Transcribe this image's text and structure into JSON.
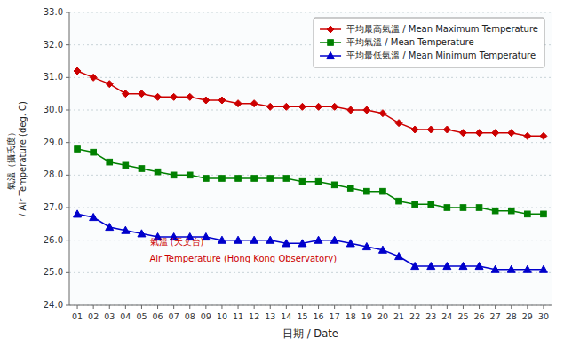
{
  "chart_data": {
    "type": "line",
    "xlabel": "日期 / Date",
    "ylabel": "氣溫（攝氏度）\n/ Air Temperature (deg. C)",
    "x": [
      1,
      2,
      3,
      4,
      5,
      6,
      7,
      8,
      9,
      10,
      11,
      12,
      13,
      14,
      15,
      16,
      17,
      18,
      19,
      20,
      21,
      22,
      23,
      24,
      25,
      26,
      27,
      28,
      29,
      30
    ],
    "xlim": [
      0.5,
      30.5
    ],
    "xticks": [
      {
        "value": 1,
        "label": "01"
      },
      {
        "value": 2,
        "label": "02"
      },
      {
        "value": 3,
        "label": "03"
      },
      {
        "value": 4,
        "label": "04"
      },
      {
        "value": 5,
        "label": "05"
      },
      {
        "value": 6,
        "label": "06"
      },
      {
        "value": 7,
        "label": "07"
      },
      {
        "value": 8,
        "label": "08"
      },
      {
        "value": 9,
        "label": "09"
      },
      10,
      11,
      12,
      13,
      14,
      15,
      16,
      17,
      18,
      19,
      20,
      21,
      22,
      23,
      24,
      25,
      26,
      27,
      28,
      29,
      30
    ],
    "ylim": [
      24.0,
      33.0
    ],
    "yticks": [
      {
        "value": 24.0,
        "label": "24.0"
      },
      {
        "value": 25.0,
        "label": "25.0"
      },
      {
        "value": 26.0,
        "label": "26.0"
      },
      {
        "value": 27.0,
        "label": "27.0"
      },
      {
        "value": 28.0,
        "label": "28.0"
      },
      {
        "value": 29.0,
        "label": "29.0"
      },
      {
        "value": 30.0,
        "label": "30.0"
      },
      {
        "value": 31.0,
        "label": "31.0"
      },
      {
        "value": 32.0,
        "label": "32.0"
      },
      {
        "value": 33.0,
        "label": "33.0"
      }
    ],
    "grid": true,
    "legend": "upper right",
    "series": [
      {
        "name": "平均最高氣溫 / Mean Maximum Temperature",
        "color": "#cc0000",
        "marker": "diamond",
        "values": [
          31.2,
          31.0,
          30.8,
          30.5,
          30.5,
          30.4,
          30.4,
          30.4,
          30.3,
          30.3,
          30.2,
          30.2,
          30.1,
          30.1,
          30.1,
          30.1,
          30.1,
          30.0,
          30.0,
          29.9,
          29.6,
          29.4,
          29.4,
          29.4,
          29.3,
          29.3,
          29.3,
          29.3,
          29.2,
          29.2
        ]
      },
      {
        "name": "平均氣溫 / Mean Temperature",
        "color": "#008000",
        "marker": "square",
        "values": [
          28.8,
          28.7,
          28.4,
          28.3,
          28.2,
          28.1,
          28.0,
          28.0,
          27.9,
          27.9,
          27.9,
          27.9,
          27.9,
          27.9,
          27.8,
          27.8,
          27.7,
          27.6,
          27.5,
          27.5,
          27.2,
          27.1,
          27.1,
          27.0,
          27.0,
          27.0,
          26.9,
          26.9,
          26.8,
          26.8
        ]
      },
      {
        "name": "平均最低氣溫 / Mean Minimum Temperature",
        "color": "#0000cc",
        "marker": "triangle",
        "values": [
          26.8,
          26.7,
          26.4,
          26.3,
          26.2,
          26.1,
          26.1,
          26.1,
          26.1,
          26.0,
          26.0,
          26.0,
          26.0,
          25.9,
          25.9,
          26.0,
          26.0,
          25.9,
          25.8,
          25.7,
          25.5,
          25.2,
          25.2,
          25.2,
          25.2,
          25.2,
          25.1,
          25.1,
          25.1,
          25.1
        ]
      }
    ],
    "annotations": [
      {
        "text": "氣溫 (天文台)",
        "x": 5.5,
        "y": 25.85,
        "color": "#cc0000"
      },
      {
        "text": "Air Temperature (Hong Kong Observatory)",
        "x": 5.5,
        "y": 25.35,
        "color": "#cc0000"
      }
    ]
  }
}
